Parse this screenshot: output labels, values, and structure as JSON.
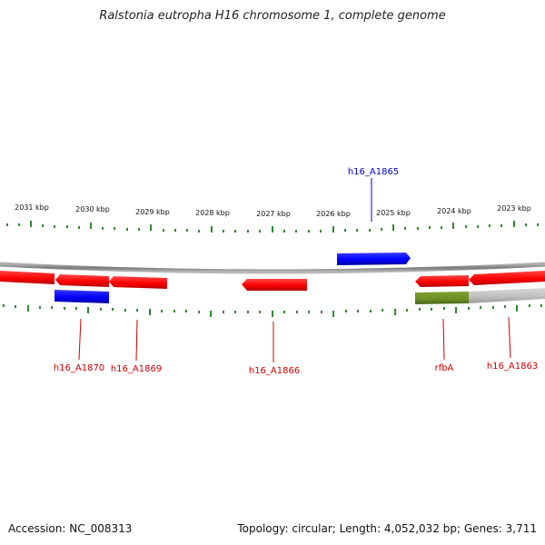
{
  "title": "Ralstonia eutropha H16 chromosome 1, complete genome",
  "footer": {
    "accession": "Accession: NC_008313",
    "summary": "Topology: circular; Length: 4,052,032 bp; Genes: 3,711"
  },
  "scale_labels": [
    "2031 kbp",
    "2030 kbp",
    "2029 kbp",
    "2028 kbp",
    "2027 kbp",
    "2026 kbp",
    "2025 kbp",
    "2024 kbp",
    "2023 kbp"
  ],
  "gene_labels": {
    "h16_A1865": "h16_A1865",
    "h16_A1870": "h16_A1870",
    "h16_A1869": "h16_A1869",
    "h16_A1866": "h16_A1866",
    "rfbA": "rfbA",
    "h16_A1863": "h16_A1863"
  },
  "colors": {
    "forward_gene": "#ff0000",
    "selected_gene": "#0000ff",
    "rfbA_gene": "#6b8e23",
    "partial_gene": "#bbbbbb",
    "tick": "#2e8b2e",
    "backbone": "#888888",
    "label_red": "#cc0000",
    "label_blue": "#0000cc"
  }
}
